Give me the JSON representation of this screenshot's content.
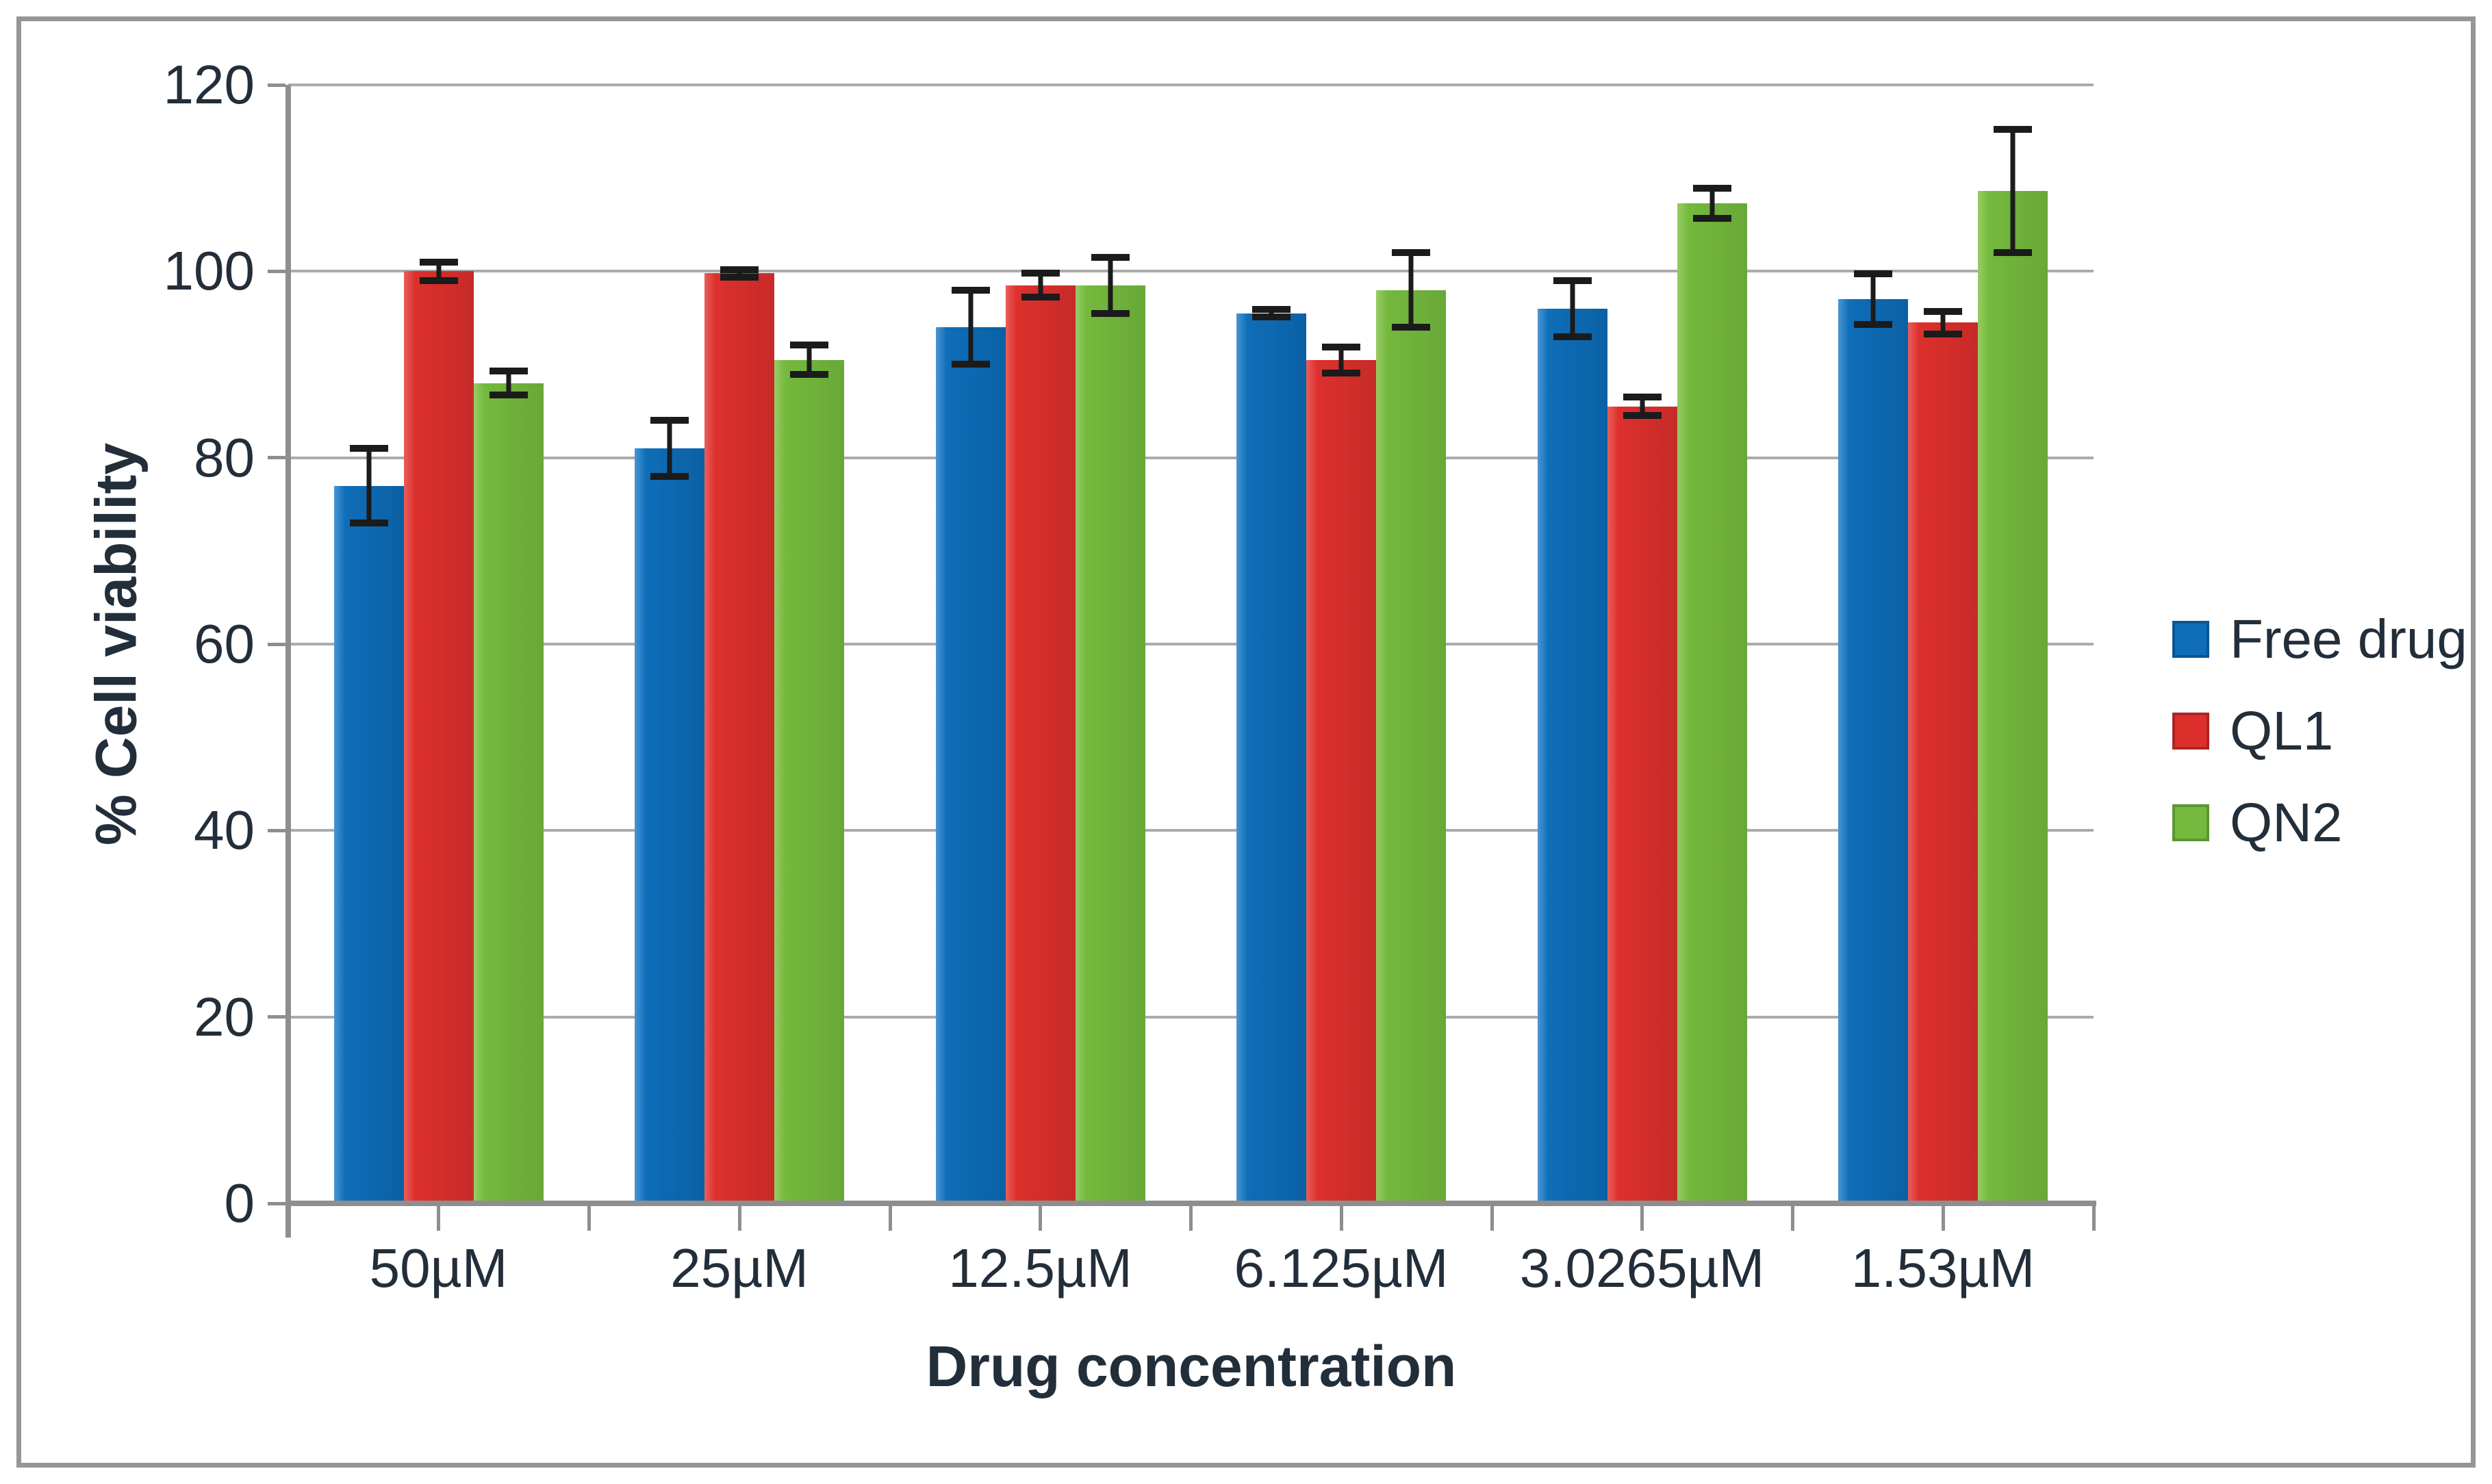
{
  "colors": {
    "background": "#ffffff",
    "frame": "#969696",
    "gridline": "#ababab",
    "axis": "#8e8e8e",
    "text": "#222e3a",
    "error_bar": "#1b1b1b"
  },
  "chart_data": {
    "type": "bar",
    "title": "",
    "xlabel": "Drug concentration",
    "ylabel": "% Cell viability",
    "categories": [
      "50µM",
      "25µM",
      "12.5µM",
      "6.125µM",
      "3.0265µM",
      "1.53µM"
    ],
    "series": [
      {
        "name": "Free drug",
        "color": "#0E6EB8",
        "color_light": "#4A96D4",
        "color_dark": "#0B60A4",
        "swatch_border": "#0A5694",
        "values": [
          77,
          81,
          94,
          95.5,
          96,
          97
        ],
        "errors": [
          4,
          3,
          4,
          0.4,
          3,
          2.7
        ]
      },
      {
        "name": "QL1",
        "color": "#DD302D",
        "color_light": "#EA5E5B",
        "color_dark": "#C62B28",
        "swatch_border": "#B02423",
        "values": [
          100,
          99.8,
          98.5,
          90.5,
          85.5,
          94.5
        ],
        "errors": [
          1,
          0.4,
          1.3,
          1.4,
          1,
          1.2
        ]
      },
      {
        "name": "QN2",
        "color": "#74B93D",
        "color_light": "#98CC65",
        "color_dark": "#68A837",
        "swatch_border": "#5C9630",
        "values": [
          88,
          90.5,
          98.5,
          98,
          107.3,
          108.6
        ],
        "errors": [
          1.3,
          1.6,
          3,
          4,
          1.6,
          6.6
        ]
      }
    ],
    "ylim": [
      0,
      120
    ],
    "ytick_step": 20,
    "yticks": [
      "0",
      "20",
      "40",
      "60",
      "80",
      "100",
      "120"
    ],
    "grid": "horizontal-only",
    "legend_position": "right",
    "error_bars": true
  }
}
